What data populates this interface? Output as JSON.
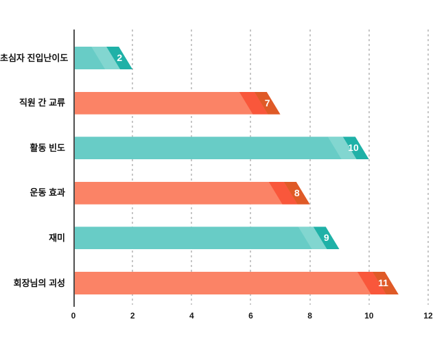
{
  "chart_data": {
    "type": "bar",
    "orientation": "horizontal",
    "title": "",
    "categories": [
      "초심자 진입난이도",
      "직원 간 교류",
      "활동 빈도",
      "운동 효과",
      "재미",
      "회장님의 괴성"
    ],
    "values": [
      2,
      7,
      10,
      8,
      9,
      11
    ],
    "value_labels": [
      "2",
      "7",
      "10",
      "8",
      "9",
      "11"
    ],
    "x_ticks": [
      "0",
      "2",
      "4",
      "6",
      "8",
      "10",
      "12"
    ],
    "xlim": [
      0,
      12
    ],
    "grid": "dashed-vertical-gridlines",
    "legend": "none",
    "bar_color_keys": [
      "teal",
      "orange",
      "teal",
      "orange",
      "teal",
      "orange"
    ],
    "colors": {
      "teal": {
        "base": "#68CCC6",
        "strip": "#82D6D0",
        "tip": "#1FB1A7"
      },
      "orange": {
        "base": "#FB8366",
        "strip": "#F9573B",
        "tip": "#DF5A27"
      },
      "axis_line": "#4D4D4D",
      "gridline": "#C6C6C6",
      "category_text": "#111111",
      "tick_text": "#1A1A1A",
      "value_text": "#FFFFFF"
    }
  }
}
